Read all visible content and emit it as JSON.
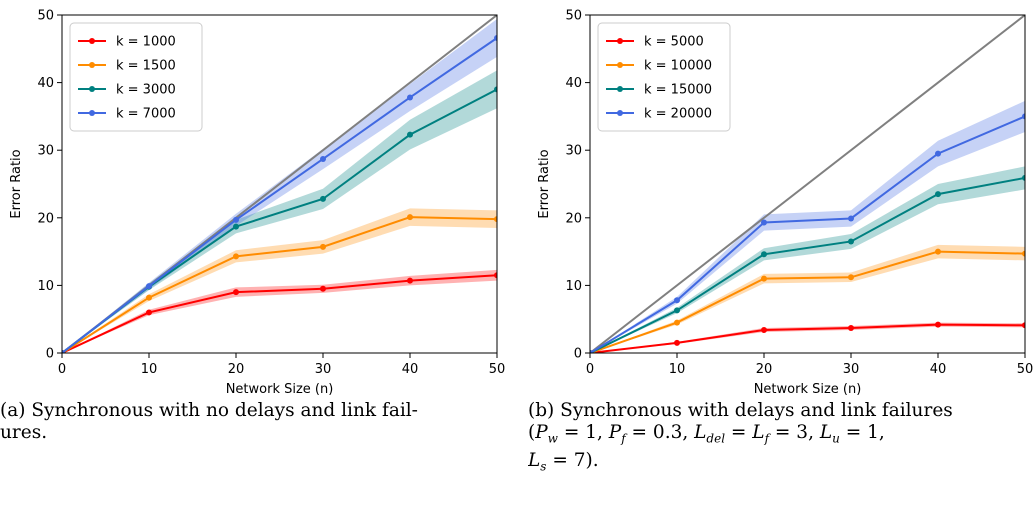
{
  "theme": {
    "identity_line_color": "#808080",
    "axis_color": "#000000"
  },
  "captions": {
    "a": {
      "line1": "(a) Synchronous with no delays and link fail-",
      "line2": "ures."
    },
    "b": {
      "line1": "(b) Synchronous with delays and link failures",
      "line2": "(Pw = 1, Pf = 0.3, Ldel = Lf = 3, Lu = 1,",
      "line3": "Ls = 7)."
    }
  },
  "chart_data": [
    {
      "type": "line",
      "xlabel": "Network Size (n)",
      "ylabel": "Error Ratio",
      "xlim": [
        0,
        50
      ],
      "ylim": [
        0,
        50
      ],
      "xticks": [
        0,
        10,
        20,
        30,
        40,
        50
      ],
      "yticks": [
        0,
        10,
        20,
        30,
        40,
        50
      ],
      "grid": false,
      "legend": "top-left",
      "identity_line": {
        "x": [
          0,
          50
        ],
        "y": [
          0,
          50
        ]
      },
      "x": [
        0,
        10,
        20,
        30,
        40,
        50
      ],
      "series": [
        {
          "name": "k = 1000",
          "color": "#ff0000",
          "values": [
            0,
            6.0,
            9.0,
            9.5,
            10.7,
            11.5
          ],
          "band": [
            0,
            0.4,
            0.7,
            0.6,
            0.7,
            0.8
          ]
        },
        {
          "name": "k = 1500",
          "color": "#ff8c00",
          "values": [
            0,
            8.2,
            14.3,
            15.7,
            20.1,
            19.8
          ],
          "band": [
            0,
            0.5,
            0.9,
            1.0,
            1.3,
            1.3
          ]
        },
        {
          "name": "k = 3000",
          "color": "#008080",
          "values": [
            0,
            9.8,
            18.7,
            22.8,
            32.3,
            39.0
          ],
          "band": [
            0,
            0.5,
            1.0,
            1.5,
            2.2,
            2.8
          ]
        },
        {
          "name": "k = 7000",
          "color": "#4169e1",
          "values": [
            0,
            9.9,
            19.7,
            28.7,
            37.8,
            46.6
          ],
          "band": [
            0,
            0.5,
            0.9,
            1.5,
            2.0,
            2.8
          ]
        }
      ]
    },
    {
      "type": "line",
      "xlabel": "Network Size (n)",
      "ylabel": "Error Ratio",
      "xlim": [
        0,
        50
      ],
      "ylim": [
        0,
        50
      ],
      "xticks": [
        0,
        10,
        20,
        30,
        40,
        50
      ],
      "yticks": [
        0,
        10,
        20,
        30,
        40,
        50
      ],
      "grid": false,
      "legend": "top-left",
      "identity_line": {
        "x": [
          0,
          50
        ],
        "y": [
          0,
          50
        ]
      },
      "x": [
        0,
        10,
        20,
        30,
        40,
        50
      ],
      "series": [
        {
          "name": "k = 5000",
          "color": "#ff0000",
          "values": [
            0,
            1.5,
            3.4,
            3.7,
            4.2,
            4.1
          ],
          "band": [
            0,
            0.15,
            0.3,
            0.3,
            0.3,
            0.3
          ]
        },
        {
          "name": "k = 10000",
          "color": "#ff8c00",
          "values": [
            0,
            4.5,
            11.0,
            11.2,
            15.0,
            14.7
          ],
          "band": [
            0,
            0.3,
            0.7,
            0.7,
            1.0,
            1.0
          ]
        },
        {
          "name": "k = 15000",
          "color": "#008080",
          "values": [
            0,
            6.3,
            14.6,
            16.5,
            23.5,
            25.9
          ],
          "band": [
            0,
            0.4,
            0.9,
            1.1,
            1.5,
            1.7
          ]
        },
        {
          "name": "k = 20000",
          "color": "#4169e1",
          "values": [
            0,
            7.8,
            19.3,
            19.9,
            29.5,
            35.0
          ],
          "band": [
            0,
            0.5,
            1.2,
            1.2,
            1.9,
            2.3
          ]
        }
      ]
    }
  ]
}
